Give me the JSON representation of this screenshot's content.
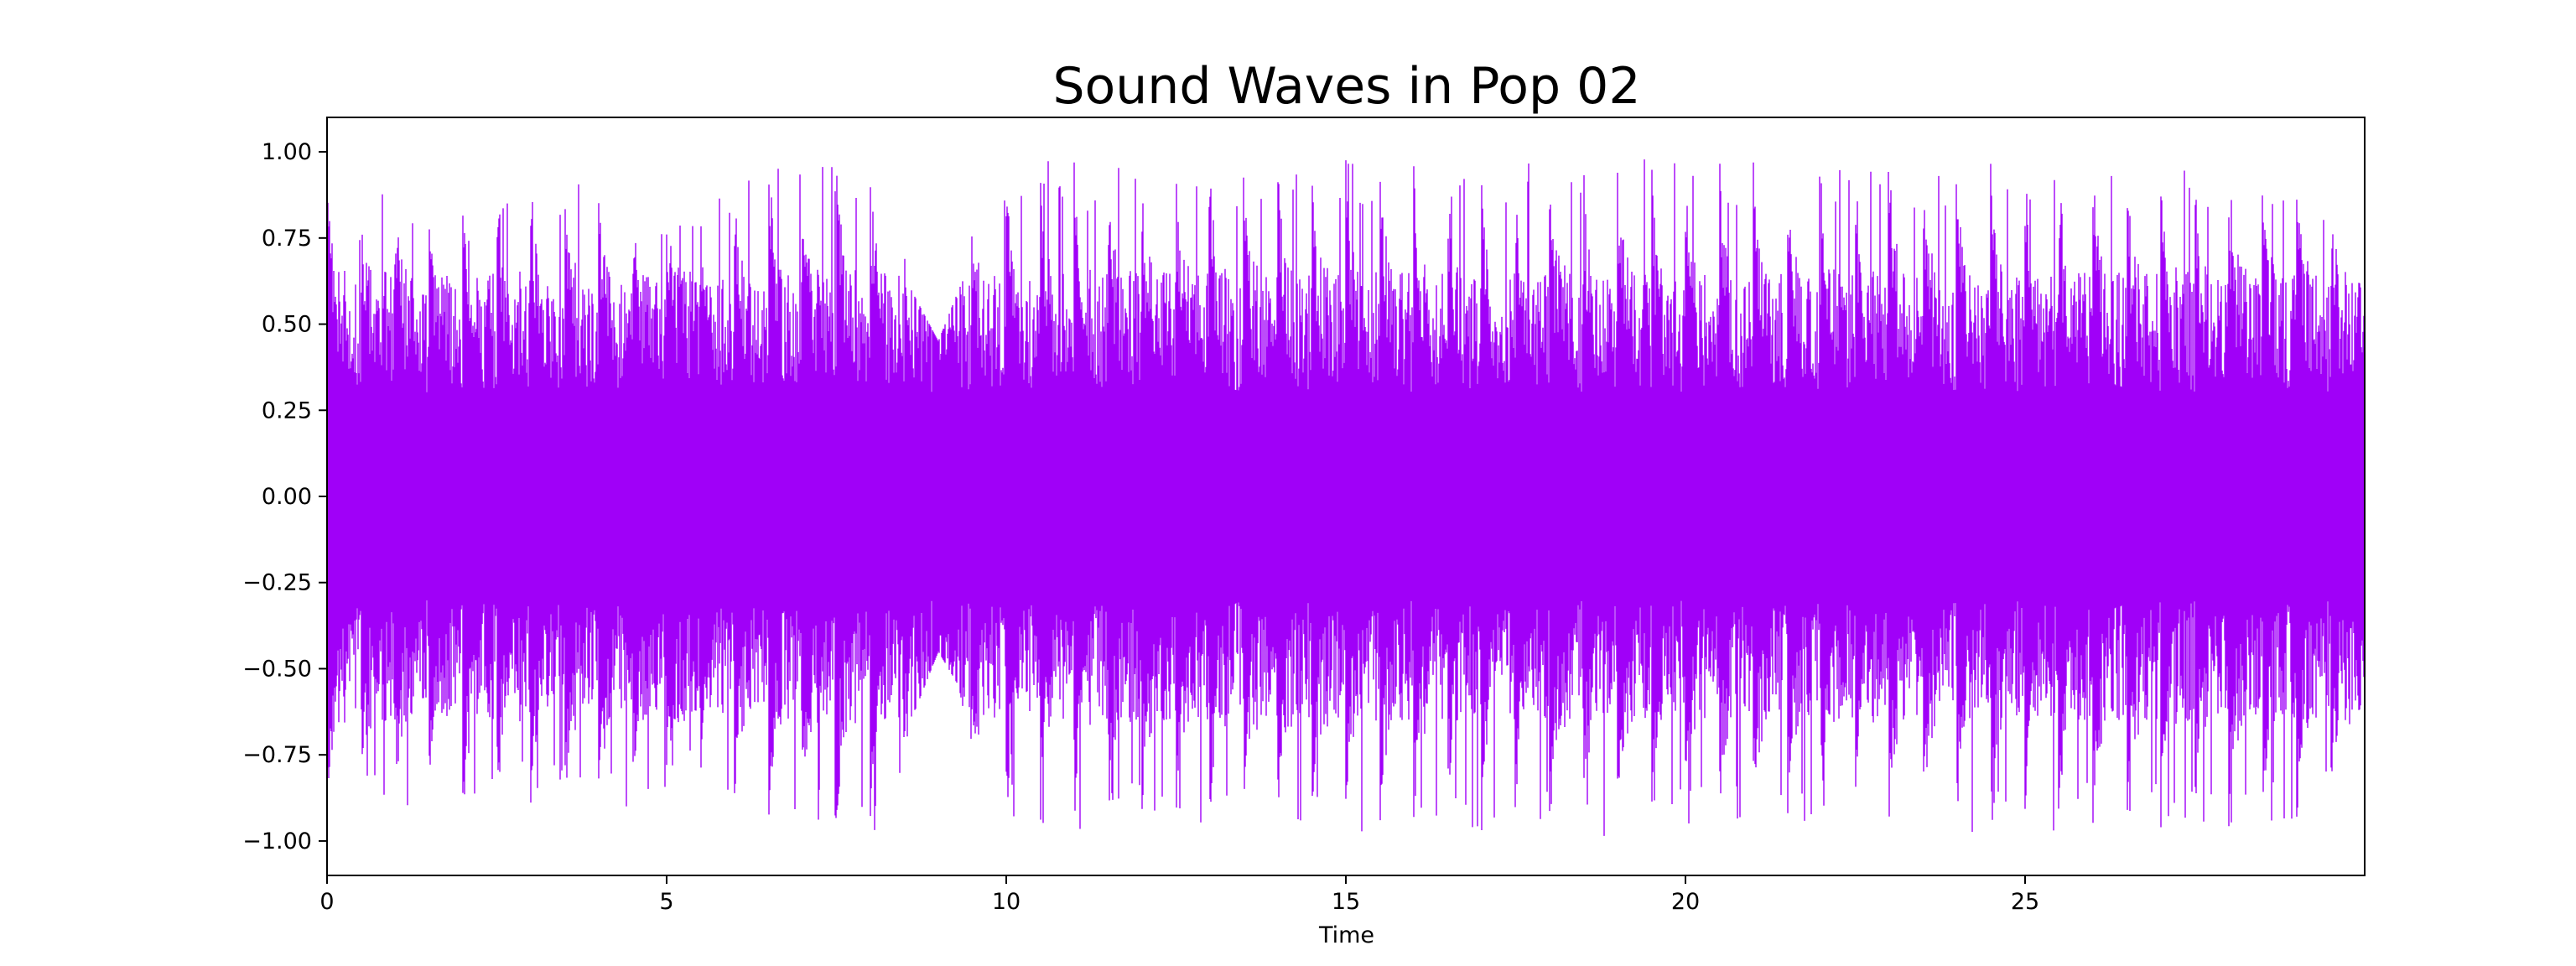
{
  "chart_data": {
    "type": "line",
    "title": "Sound Waves in Pop 02",
    "xlabel": "Time",
    "ylabel": "",
    "xlim": [
      0,
      30
    ],
    "ylim": [
      -1.1,
      1.1
    ],
    "xticks": [
      0,
      5,
      10,
      15,
      20,
      25
    ],
    "xtick_labels": [
      "0",
      "5",
      "10",
      "15",
      "20",
      "25"
    ],
    "yticks": [
      1.0,
      0.75,
      0.5,
      0.25,
      0.0,
      -0.25,
      -0.5,
      -0.75,
      -1.0
    ],
    "ytick_labels": [
      "1.00",
      "0.75",
      "0.50",
      "0.25",
      "0.00",
      "−0.25",
      "−0.50",
      "−0.75",
      "−1.00"
    ],
    "grid": false,
    "legend": "none",
    "series": [
      {
        "color": "#a000f8",
        "envelope_time": [
          0,
          0.5,
          1.0,
          1.5,
          2.0,
          2.5,
          3.0,
          3.5,
          4.0,
          4.5,
          5.0,
          5.5,
          6.0,
          6.3,
          6.5,
          7.0,
          7.5,
          8.0,
          8.3,
          8.6,
          9.0,
          9.3,
          9.6,
          10.0,
          10.5,
          11.0,
          11.5,
          12.0,
          12.5,
          13.0,
          13.5,
          14.0,
          14.5,
          15.0,
          15.5,
          16.0,
          16.5,
          17.0,
          17.5,
          18.0,
          18.5,
          19.0,
          19.5,
          20.0,
          20.5,
          21.0,
          21.5,
          22.0,
          22.5,
          23.0,
          23.5,
          24.0,
          24.5,
          25.0,
          25.5,
          26.0,
          26.5,
          27.0,
          27.5,
          28.0,
          28.5,
          29.0,
          29.5,
          30.0
        ],
        "envelope_max": [
          0.97,
          0.85,
          0.9,
          0.95,
          0.92,
          0.95,
          0.9,
          0.93,
          0.88,
          0.9,
          0.85,
          0.85,
          0.9,
          0.99,
          0.98,
          0.98,
          0.99,
          0.99,
          0.95,
          0.6,
          0.45,
          0.6,
          0.85,
          0.95,
          0.99,
          0.97,
          0.98,
          0.95,
          0.97,
          0.98,
          0.95,
          0.99,
          0.97,
          0.98,
          0.98,
          0.97,
          0.98,
          0.99,
          0.98,
          0.97,
          0.98,
          0.99,
          0.98,
          0.98,
          0.97,
          0.98,
          0.99,
          0.98,
          0.97,
          0.98,
          0.97,
          0.98,
          0.97,
          0.98,
          0.97,
          0.98,
          0.97,
          0.98,
          0.97,
          0.99,
          0.95,
          0.97,
          0.9,
          0.57
        ],
        "envelope_min": [
          -0.97,
          -0.85,
          -0.9,
          -0.92,
          -0.95,
          -0.92,
          -0.9,
          -0.9,
          -0.88,
          -0.92,
          -0.85,
          -0.85,
          -0.92,
          -0.99,
          -0.98,
          -0.99,
          -0.99,
          -0.99,
          -0.95,
          -0.65,
          -0.45,
          -0.55,
          -0.85,
          -0.97,
          -0.99,
          -0.97,
          -0.98,
          -0.95,
          -0.97,
          -0.98,
          -0.95,
          -0.99,
          -0.97,
          -0.98,
          -0.98,
          -0.97,
          -0.98,
          -0.99,
          -0.98,
          -0.97,
          -0.98,
          -0.99,
          -0.98,
          -0.98,
          -0.97,
          -0.98,
          -0.99,
          -0.98,
          -0.97,
          -0.98,
          -0.97,
          -0.98,
          -0.97,
          -0.98,
          -0.97,
          -0.98,
          -0.97,
          -0.98,
          -0.97,
          -0.99,
          -0.95,
          -0.97,
          -0.9,
          -0.57
        ],
        "typical_amplitude": 0.3,
        "beat_period_s": 0.5
      }
    ]
  }
}
